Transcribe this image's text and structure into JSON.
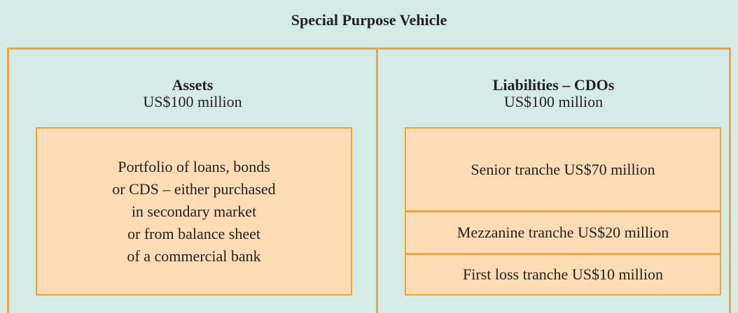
{
  "title": "Special Purpose Vehicle",
  "assets": {
    "heading": "Assets",
    "amount": "US$100 million",
    "portfolio": [
      "Portfolio of loans, bonds",
      "or CDS – either purchased",
      "in secondary market",
      "or from balance sheet",
      "of a commercial bank"
    ]
  },
  "liabilities": {
    "heading": "Liabilities – CDOs",
    "amount": "US$100 million",
    "tranches": [
      "Senior tranche US$70 million",
      "Mezzanine tranche US$20 million",
      "First loss tranche US$10 million"
    ]
  }
}
